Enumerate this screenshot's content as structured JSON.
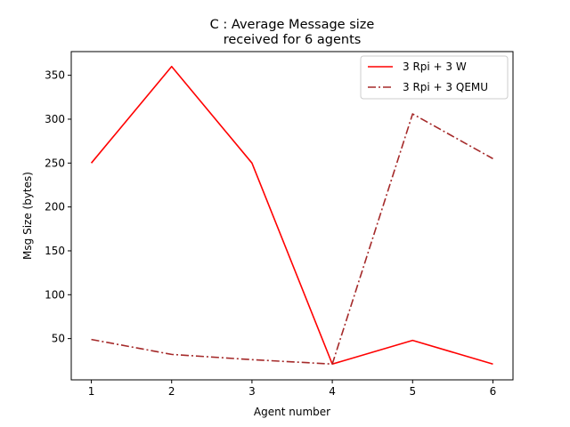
{
  "chart_data": {
    "type": "line",
    "title_lines": [
      "C : Average Message size",
      "received for 6 agents"
    ],
    "xlabel": "Agent number",
    "ylabel": "Msg Size (bytes)",
    "x": [
      1,
      2,
      3,
      4,
      5,
      6
    ],
    "xticks": [
      "1",
      "2",
      "3",
      "4",
      "5",
      "6"
    ],
    "yticks": [
      "50",
      "100",
      "150",
      "200",
      "250",
      "300",
      "350"
    ],
    "xlim": [
      0.75,
      6.25
    ],
    "ylim": [
      3,
      377
    ],
    "grid": false,
    "legend_position": "top-right",
    "series": [
      {
        "name": "3 Rpi + 3 W",
        "values": [
          250,
          360,
          250,
          21,
          48,
          21
        ],
        "color": "#ff0000",
        "style": "solid"
      },
      {
        "name": "3 Rpi + 3 QEMU",
        "values": [
          49,
          32,
          26,
          21,
          306,
          255
        ],
        "color": "#a52a2a",
        "style": "dashdot"
      }
    ]
  }
}
